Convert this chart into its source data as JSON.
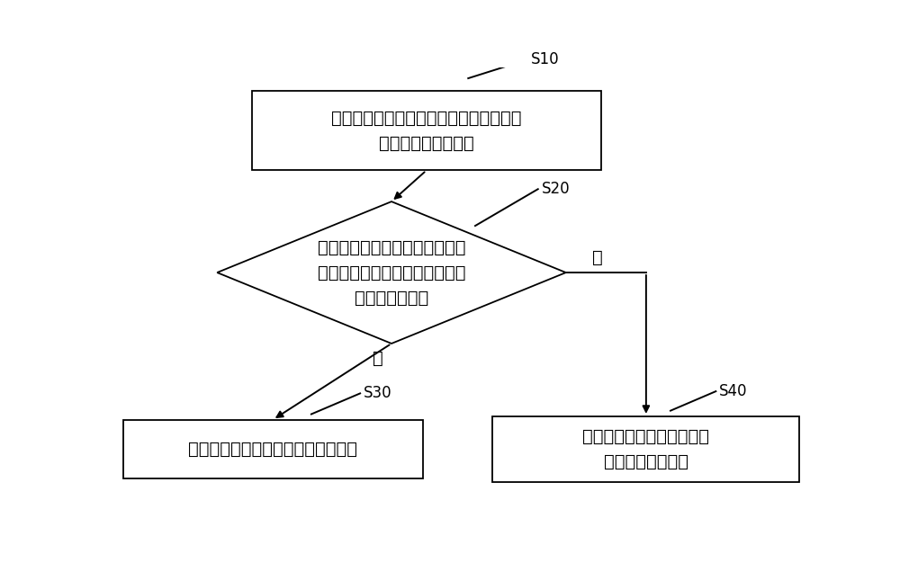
{
  "bg_color": "#ffffff",
  "line_color": "#000000",
  "text_color": "#000000",
  "box_color": "#ffffff",
  "font_size_main": 14,
  "font_size_label": 12,
  "s10_label": "S10",
  "s20_label": "S20",
  "s30_label": "S30",
  "s40_label": "S40",
  "box1_text": "获取拾球路径，并控制所述拾球车按照所\n述拾球路径开始行驶",
  "diamond_text": "获取拾球路径上对应区域的实时\n图像，并检测所述实时图像中是\n否存在目标图像",
  "box3_text": "控制所述拾球车执行相应的拾球任务",
  "box4_text": "不执行拾球任务，继续按照\n所述拾球路径行驶",
  "yes_label": "是",
  "no_label": "否",
  "figw": 10.0,
  "figh": 6.26,
  "dpi": 100
}
